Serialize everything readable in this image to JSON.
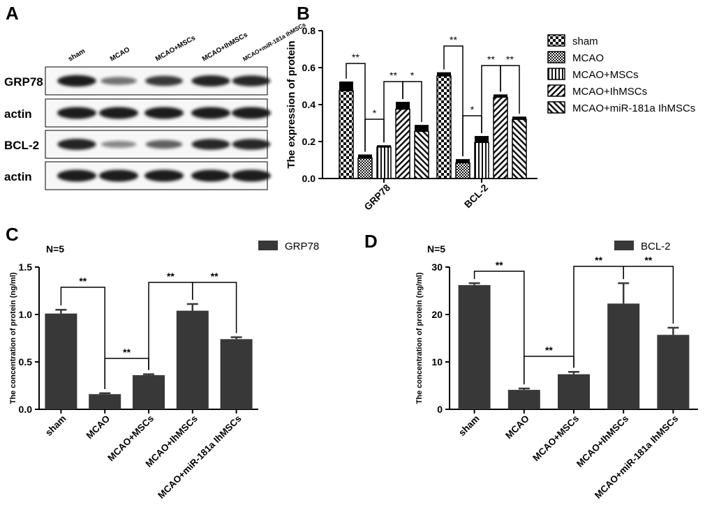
{
  "colors": {
    "bar_dark": "#383838",
    "axis": "#000000",
    "blot_bg": "#f7f7f7",
    "band": "#1a1a1a"
  },
  "panel_a": {
    "letter": "A",
    "lane_labels": [
      "sham",
      "MCAO",
      "MCAO+MSCs",
      "MCAO+IhMSCs",
      "MCAO+miR-181a IhMSCs"
    ],
    "rows": [
      {
        "label": "GRP78",
        "intensity": [
          0.95,
          0.45,
          0.75,
          0.9,
          0.85
        ]
      },
      {
        "label": "actin",
        "intensity": [
          1,
          1,
          1,
          1,
          1
        ]
      },
      {
        "label": "BCL-2",
        "intensity": [
          0.9,
          0.3,
          0.55,
          0.85,
          0.85
        ]
      },
      {
        "label": "actin",
        "intensity": [
          1,
          1,
          1,
          1,
          1
        ]
      }
    ]
  },
  "panel_b": {
    "letter": "B",
    "legend": [
      "sham",
      "MCAO",
      "MCAO+MSCs",
      "MCAO+IhMSCs",
      "MCAO+miR-181a IhMSCs"
    ]
  },
  "panel_c": {
    "letter": "C",
    "n_label": "N=5"
  },
  "panel_d": {
    "letter": "D",
    "n_label": "N=5"
  },
  "chart_data": [
    {
      "id": "B",
      "type": "bar",
      "categories": [
        "GRP78",
        "BCL-2"
      ],
      "series": [
        {
          "name": "sham",
          "pattern": "checker",
          "values": [
            0.475,
            0.555
          ],
          "errors": [
            0.05,
            0.02
          ]
        },
        {
          "name": "MCAO",
          "pattern": "dots",
          "values": [
            0.11,
            0.085
          ],
          "errors": [
            0.02,
            0.02
          ]
        },
        {
          "name": "MCAO+MSCs",
          "pattern": "vertical",
          "values": [
            0.17,
            0.195
          ],
          "errors": [
            0.01,
            0.035
          ]
        },
        {
          "name": "MCAO+IhMSCs",
          "pattern": "diag-right",
          "values": [
            0.375,
            0.44
          ],
          "errors": [
            0.04,
            0.015
          ]
        },
        {
          "name": "MCAO+miR-181a IhMSCs",
          "pattern": "diag-left",
          "values": [
            0.255,
            0.32
          ],
          "errors": [
            0.035,
            0.015
          ]
        }
      ],
      "title": "",
      "xlabel": "",
      "ylabel": "The expression of protein",
      "ylim": [
        0,
        0.8
      ],
      "yticks": [
        "0.0",
        "0.2",
        "0.4",
        "0.6",
        "0.8"
      ],
      "significance": [
        {
          "category": 0,
          "from": 0,
          "to": 1,
          "label": "**"
        },
        {
          "category": 0,
          "from": 1,
          "to": 2,
          "label": "*"
        },
        {
          "category": 0,
          "from": 2,
          "to": 3,
          "label": "**"
        },
        {
          "category": 0,
          "from": 3,
          "to": 4,
          "label": "*"
        },
        {
          "category": 1,
          "from": 0,
          "to": 1,
          "label": "**"
        },
        {
          "category": 1,
          "from": 1,
          "to": 2,
          "label": "*"
        },
        {
          "category": 1,
          "from": 2,
          "to": 3,
          "label": "**"
        },
        {
          "category": 1,
          "from": 3,
          "to": 4,
          "label": "**"
        }
      ],
      "legend_position": "right"
    },
    {
      "id": "C",
      "type": "bar",
      "categories": [
        "sham",
        "MCAO",
        "MCAO+MSCs",
        "MCAO+IhMSCs",
        "MCAO+miR-181a IhMSCs"
      ],
      "series": [
        {
          "name": "GRP78",
          "values": [
            1.01,
            0.16,
            0.36,
            1.04,
            0.74
          ],
          "errors": [
            0.04,
            0.01,
            0.01,
            0.07,
            0.02
          ]
        }
      ],
      "title": "",
      "xlabel": "",
      "ylabel": "The concentration of protein (ng/ml)",
      "ylim": [
        0,
        1.5
      ],
      "yticks": [
        "0.0",
        "0.5",
        "1.0",
        "1.5"
      ],
      "significance": [
        {
          "from": 0,
          "to": 1,
          "label": "**"
        },
        {
          "from": 2,
          "to": 3,
          "label": "**"
        },
        {
          "from": 1,
          "to": 2,
          "label": "**"
        },
        {
          "from": 3,
          "to": 4,
          "label": "**"
        }
      ],
      "legend_position": "top-right"
    },
    {
      "id": "D",
      "type": "bar",
      "categories": [
        "sham",
        "MCAO",
        "MCAO+MSCs",
        "MCAO+IhMSCs",
        "MCAO+miR-181a IhMSCs"
      ],
      "series": [
        {
          "name": "BCL-2",
          "values": [
            26.2,
            4.1,
            7.4,
            22.3,
            15.7
          ],
          "errors": [
            0.4,
            0.3,
            0.5,
            4.3,
            1.5
          ]
        }
      ],
      "title": "",
      "xlabel": "",
      "ylabel": "The concentration of protein (ng/ml)",
      "ylim": [
        0,
        30
      ],
      "yticks": [
        "0",
        "10",
        "20",
        "30"
      ],
      "significance": [
        {
          "from": 0,
          "to": 1,
          "label": "**"
        },
        {
          "from": 2,
          "to": 3,
          "label": "**"
        },
        {
          "from": 1,
          "to": 2,
          "label": "**"
        },
        {
          "from": 3,
          "to": 4,
          "label": "**"
        }
      ],
      "legend_position": "top-right"
    }
  ]
}
